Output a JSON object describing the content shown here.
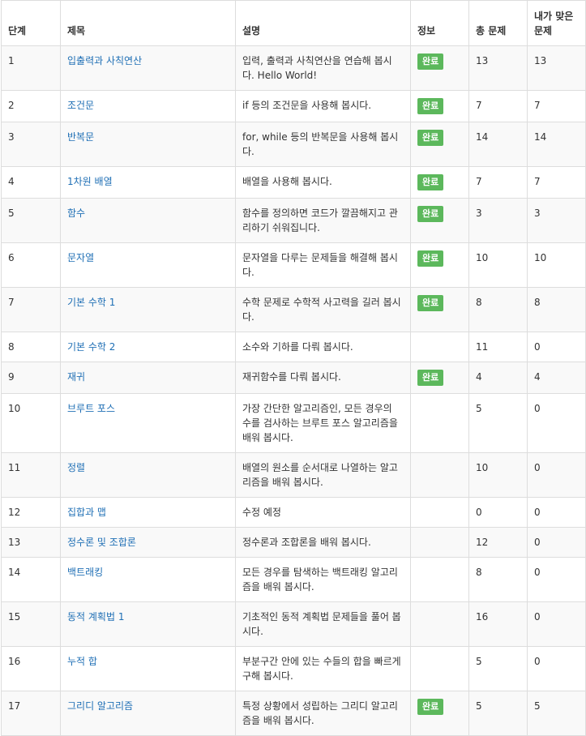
{
  "headers": {
    "step": "단계",
    "title": "제목",
    "description": "설명",
    "info": "정보",
    "total": "총 문제",
    "solved": "내가 맞은 문제"
  },
  "colors": {
    "link": "#1f6fb5",
    "badge": "#5cb85c",
    "stripe": "#f9f9f9",
    "border": "#dddddd"
  },
  "rows": [
    {
      "step": "1",
      "title": "입출력과 사칙연산",
      "description": "입력, 출력과 사칙연산을 연습해 봅시다. Hello World!",
      "status": "완료",
      "total": "13",
      "solved": "13"
    },
    {
      "step": "2",
      "title": "조건문",
      "description": "if 등의 조건문을 사용해 봅시다.",
      "status": "완료",
      "total": "7",
      "solved": "7"
    },
    {
      "step": "3",
      "title": "반복문",
      "description": "for, while 등의 반복문을 사용해 봅시다.",
      "status": "완료",
      "total": "14",
      "solved": "14"
    },
    {
      "step": "4",
      "title": "1차원 배열",
      "description": "배열을 사용해 봅시다.",
      "status": "완료",
      "total": "7",
      "solved": "7"
    },
    {
      "step": "5",
      "title": "함수",
      "description": "함수를 정의하면 코드가 깔끔해지고 관리하기 쉬워집니다.",
      "status": "완료",
      "total": "3",
      "solved": "3"
    },
    {
      "step": "6",
      "title": "문자열",
      "description": "문자열을 다루는 문제들을 해결해 봅시다.",
      "status": "완료",
      "total": "10",
      "solved": "10"
    },
    {
      "step": "7",
      "title": "기본 수학 1",
      "description": "수학 문제로 수학적 사고력을 길러 봅시다.",
      "status": "완료",
      "total": "8",
      "solved": "8"
    },
    {
      "step": "8",
      "title": "기본 수학 2",
      "description": "소수와 기하를 다뤄 봅시다.",
      "status": "",
      "total": "11",
      "solved": "0"
    },
    {
      "step": "9",
      "title": "재귀",
      "description": "재귀함수를 다뤄 봅시다.",
      "status": "완료",
      "total": "4",
      "solved": "4"
    },
    {
      "step": "10",
      "title": "브루트 포스",
      "description": "가장 간단한 알고리즘인, 모든 경우의 수를 검사하는 브루트 포스 알고리즘을 배워 봅시다.",
      "status": "",
      "total": "5",
      "solved": "0"
    },
    {
      "step": "11",
      "title": "정렬",
      "description": "배열의 원소를 순서대로 나열하는 알고리즘을 배워 봅시다.",
      "status": "",
      "total": "10",
      "solved": "0"
    },
    {
      "step": "12",
      "title": "집합과 맵",
      "description": "수정 예정",
      "status": "",
      "total": "0",
      "solved": "0"
    },
    {
      "step": "13",
      "title": "정수론 및 조합론",
      "description": "정수론과 조합론을 배워 봅시다.",
      "status": "",
      "total": "12",
      "solved": "0"
    },
    {
      "step": "14",
      "title": "백트래킹",
      "description": "모든 경우를 탐색하는 백트래킹 알고리즘을 배워 봅시다.",
      "status": "",
      "total": "8",
      "solved": "0"
    },
    {
      "step": "15",
      "title": "동적 계획법 1",
      "description": "기초적인 동적 계획법 문제들을 풀어 봅시다.",
      "status": "",
      "total": "16",
      "solved": "0"
    },
    {
      "step": "16",
      "title": "누적 합",
      "description": "부분구간 안에 있는 수들의 합을 빠르게 구해 봅시다.",
      "status": "",
      "total": "5",
      "solved": "0"
    },
    {
      "step": "17",
      "title": "그리디 알고리즘",
      "description": "특정 상황에서 성립하는 그리디 알고리즘을 배워 봅시다.",
      "status": "완료",
      "total": "5",
      "solved": "5"
    }
  ]
}
